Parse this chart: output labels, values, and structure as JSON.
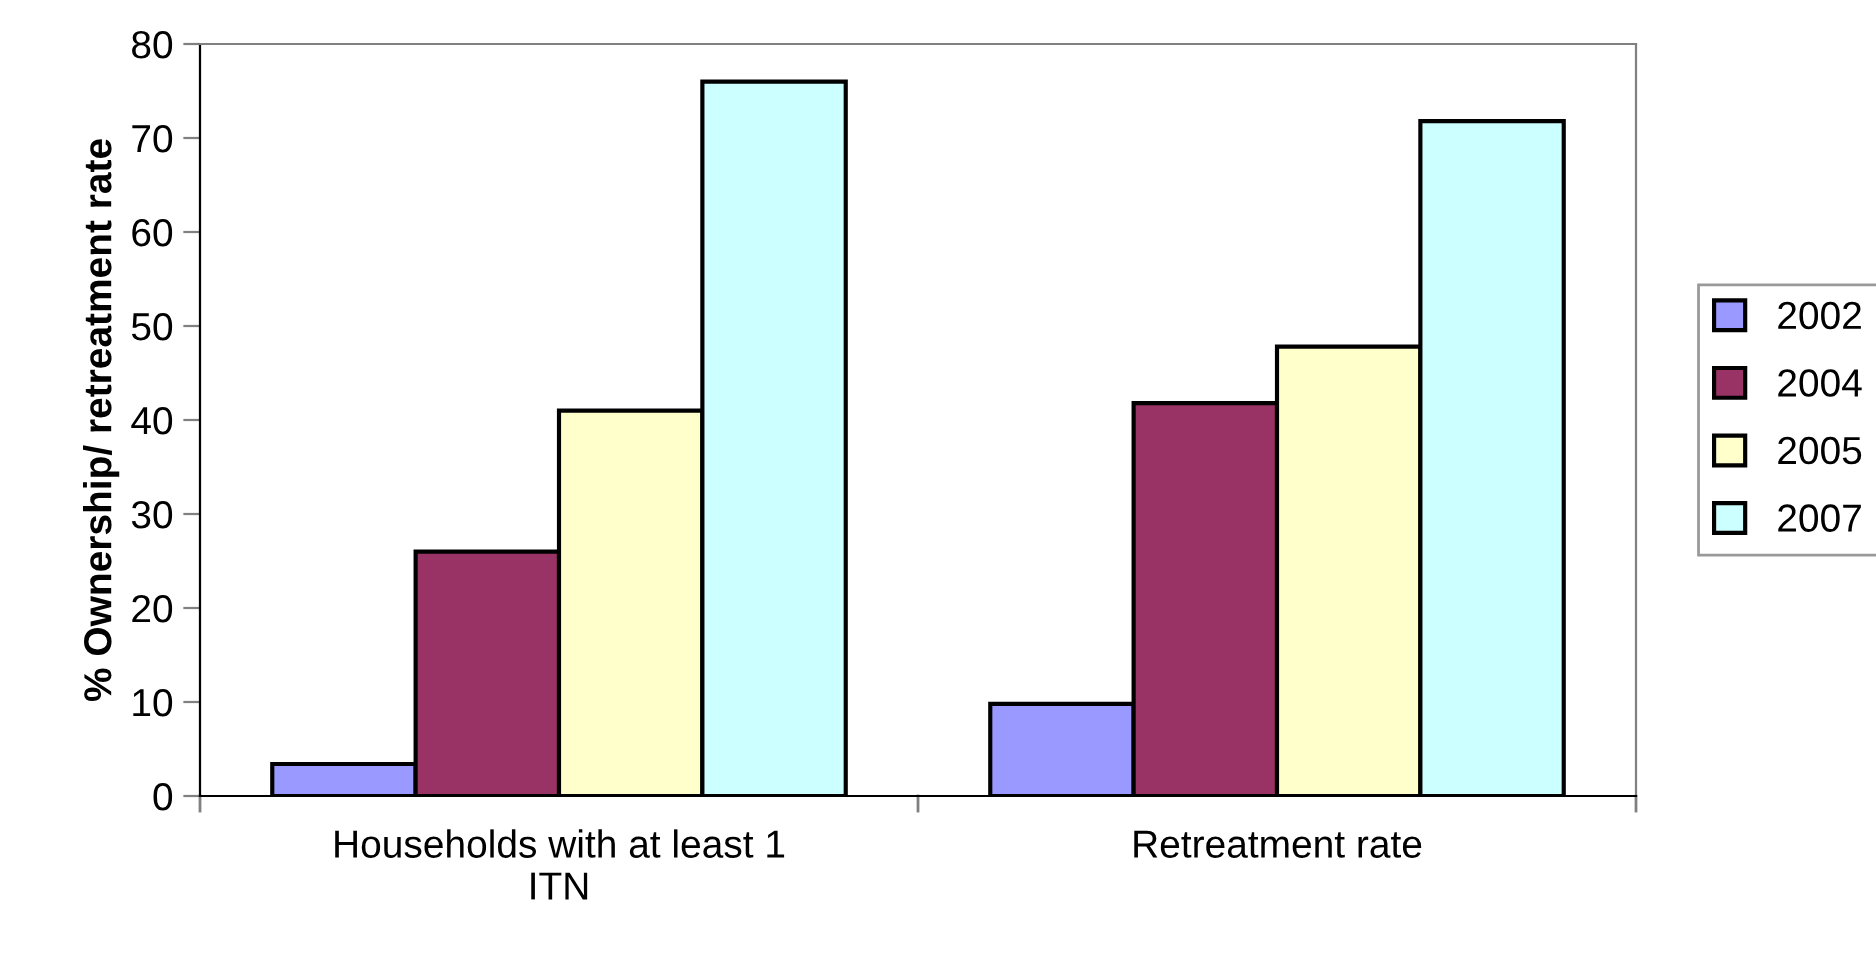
{
  "chart_data": {
    "type": "bar",
    "ylabel": "% Ownership/ retreatment rate",
    "categories": [
      "Households with at least 1\nITN",
      "Retreatment rate"
    ],
    "series": [
      {
        "name": "2002",
        "color": "#9999ff",
        "values": [
          3.4,
          9.8
        ]
      },
      {
        "name": "2004",
        "color": "#993366",
        "values": [
          26,
          41.8
        ]
      },
      {
        "name": "2005",
        "color": "#ffffcc",
        "values": [
          41,
          47.8
        ]
      },
      {
        "name": "2007",
        "color": "#ccffff",
        "values": [
          76,
          71.8
        ]
      }
    ],
    "ylim": [
      0,
      80
    ],
    "yticks": [
      0,
      10,
      20,
      30,
      40,
      50,
      60,
      70,
      80
    ],
    "grid": false,
    "legend": "right"
  }
}
